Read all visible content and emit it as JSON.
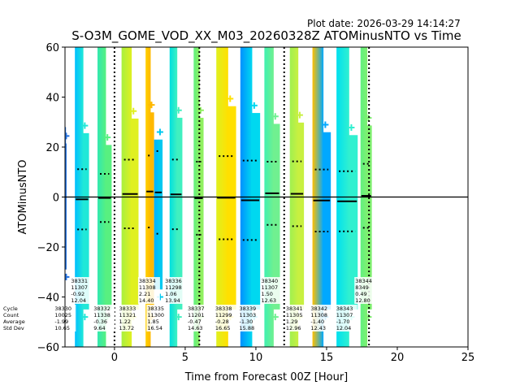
{
  "plot_date": "Plot date: 2026-03-29 14:14:27",
  "chart_data": {
    "type": "scatter",
    "title": "S-O3M_GOME_VOD_XX_M03_20260328Z ATOMinusNTO vs Time",
    "xlabel": "Time from Forecast 00Z [Hour]",
    "ylabel": "ATOMinusNTO",
    "xlim": [
      -3.5,
      25
    ],
    "ylim": [
      -60,
      60
    ],
    "xticks": [
      0,
      5,
      10,
      15,
      20,
      25
    ],
    "yticks": [
      -60,
      -40,
      -20,
      0,
      20,
      40,
      60
    ],
    "xtick_labels": [
      "0",
      "5",
      "10",
      "15",
      "20",
      "25"
    ],
    "ytick_labels": [
      "−60",
      "−40",
      "−20",
      "0",
      "20",
      "40",
      "60"
    ],
    "grid": false,
    "horizontal_reference_line": 0,
    "vertical_reference_lines": [
      0,
      6,
      12,
      18
    ],
    "stats_row_labels": [
      "Cycle",
      "Count",
      "Average",
      "Std Dev"
    ],
    "series": [
      {
        "cycle": "38330",
        "count": "10025",
        "average": "-1.99",
        "std_dev": "10.65",
        "x_range": [
          -3.5,
          -3.4
        ],
        "y_range": [
          -29,
          28
        ],
        "color": "#1f6fe0",
        "color2": "#1f6fe0"
      },
      {
        "cycle": "38331",
        "count": "11307",
        "average": "-0.92",
        "std_dev": "12.04",
        "x_range": [
          -2.8,
          -1.8
        ],
        "y_range": [
          -60,
          60
        ],
        "color": "#00bfff",
        "color2": "#20e8d8"
      },
      {
        "cycle": "38332",
        "count": "11338",
        "average": "-0.36",
        "std_dev": "9.64",
        "x_range": [
          -1.2,
          -0.2
        ],
        "y_range": [
          -60,
          60
        ],
        "color": "#30e8b0",
        "color2": "#58f080"
      },
      {
        "cycle": "38333",
        "count": "11321",
        "average": "1.22",
        "std_dev": "13.72",
        "x_range": [
          0.5,
          1.7
        ],
        "y_range": [
          -60,
          60
        ],
        "color": "#a8f040",
        "color2": "#e0f020"
      },
      {
        "cycle": "38334",
        "count": "11308",
        "average": "2.21",
        "std_dev": "14.40",
        "x_range": [
          2.2,
          2.8
        ],
        "y_range": [
          -60,
          60
        ],
        "color": "#ffd000",
        "color2": "#ffb800"
      },
      {
        "cycle": "38335",
        "count": "11300",
        "average": "1.85",
        "std_dev": "16.54",
        "x_range": [
          2.8,
          3.4
        ],
        "y_range": [
          -37,
          23
        ],
        "color": "#00b0ff",
        "color2": "#00c8f0"
      },
      {
        "cycle": "38336",
        "count": "11298",
        "average": "1.06",
        "std_dev": "13.94",
        "x_range": [
          3.9,
          4.8
        ],
        "y_range": [
          -60,
          60
        ],
        "color": "#00e0e0",
        "color2": "#40f0c0"
      },
      {
        "cycle": "38337",
        "count": "11201",
        "average": "-0.47",
        "std_dev": "14.63",
        "x_range": [
          5.6,
          6.3
        ],
        "y_range": [
          -60,
          60
        ],
        "color": "#60f080",
        "color2": "#90f060"
      },
      {
        "cycle": "38338",
        "count": "11299",
        "average": "-0.28",
        "std_dev": "16.65",
        "x_range": [
          7.2,
          8.6
        ],
        "y_range": [
          -60,
          60
        ],
        "color": "#e0f020",
        "color2": "#ffe000"
      },
      {
        "cycle": "38339",
        "count": "11303",
        "average": "-1.30",
        "std_dev": "15.88",
        "x_range": [
          8.9,
          10.3
        ],
        "y_range": [
          -60,
          60
        ],
        "color": "#0090ff",
        "color2": "#00d8f0"
      },
      {
        "cycle": "38340",
        "count": "11307",
        "average": "1.50",
        "std_dev": "12.63",
        "x_range": [
          10.6,
          11.7
        ],
        "y_range": [
          -60,
          60
        ],
        "color": "#40f0b0",
        "color2": "#70f090"
      },
      {
        "cycle": "38341",
        "count": "11305",
        "average": "1.29",
        "std_dev": "12.96",
        "x_range": [
          12.4,
          13.4
        ],
        "y_range": [
          -60,
          60
        ],
        "color": "#a0f050",
        "color2": "#c8f040"
      },
      {
        "cycle": "38342",
        "count": "11308",
        "average": "-1.40",
        "std_dev": "12.43",
        "x_range": [
          14.0,
          15.3
        ],
        "y_range": [
          -60,
          60
        ],
        "color": "#ffc000",
        "color2": "#00a8ff"
      },
      {
        "cycle": "38343",
        "count": "11307",
        "average": "-1.70",
        "std_dev": "12.04",
        "x_range": [
          15.7,
          17.2
        ],
        "y_range": [
          -60,
          60
        ],
        "color": "#00e0f0",
        "color2": "#30f0d0"
      },
      {
        "cycle": "38344",
        "count": "8349",
        "average": "0.49",
        "std_dev": "12.80",
        "x_range": [
          17.4,
          18.2
        ],
        "y_range": [
          -60,
          60
        ],
        "color": "#60f080",
        "color2": "#80f070"
      }
    ]
  }
}
